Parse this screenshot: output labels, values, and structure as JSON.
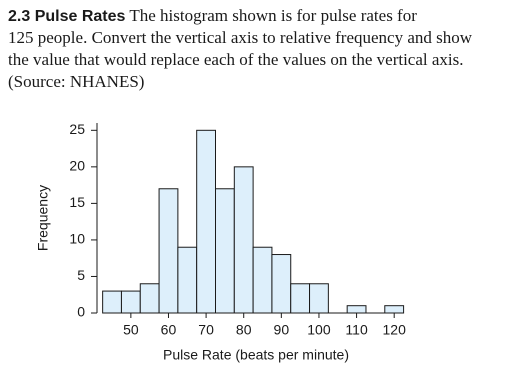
{
  "problem": {
    "heading": "2.3 Pulse Rates",
    "lines": [
      "The histogram shown is for pulse rates for",
      "125 people. Convert the vertical axis to relative frequency and show",
      "the value that would replace each of the values on the vertical axis.",
      "(Source: NHANES)"
    ]
  },
  "chart_data": {
    "type": "histogram",
    "bins": [
      42.5,
      47.5,
      52.5,
      57.5,
      62.5,
      67.5,
      72.5,
      77.5,
      82.5,
      87.5,
      92.5,
      97.5,
      102.5,
      107.5,
      112.5,
      117.5,
      122.5
    ],
    "values": [
      3,
      3,
      4,
      17,
      9,
      25,
      17,
      20,
      9,
      8,
      4,
      4,
      0,
      1,
      0,
      1
    ],
    "color": "#ddeffb",
    "edgecolor": "#1a1a1a",
    "xlabel": "Pulse Rate (beats per minute)",
    "ylabel": "Frequency",
    "xlim": [
      41,
      125
    ],
    "xticks": [
      50,
      60,
      70,
      80,
      90,
      100,
      110,
      120
    ],
    "ylim": [
      0,
      26
    ],
    "yticks": [
      0,
      5,
      10,
      15,
      20,
      25
    ]
  }
}
